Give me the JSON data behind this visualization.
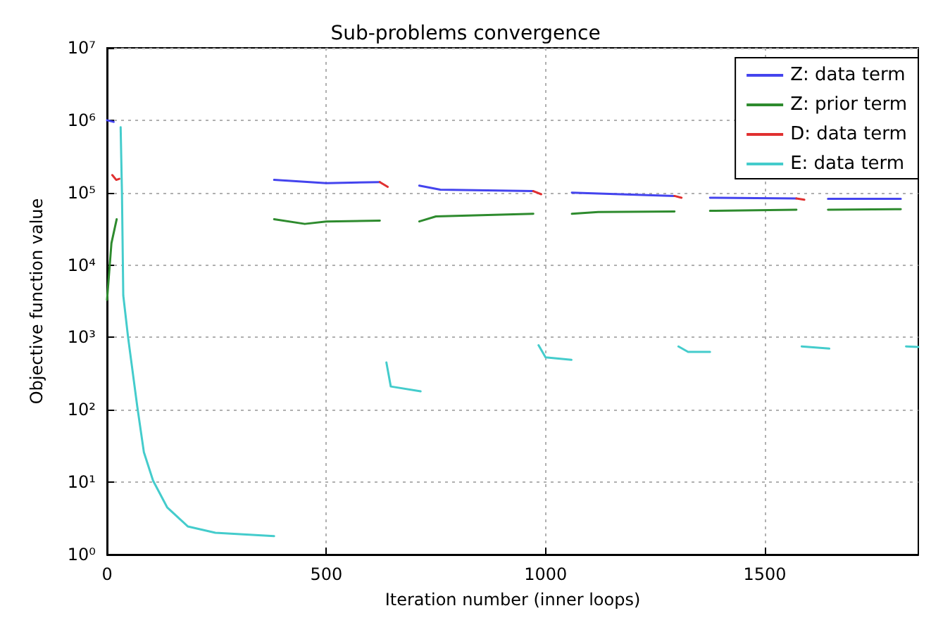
{
  "chart_data": {
    "type": "line",
    "title": "Sub-problems convergence",
    "xlabel": "Iteration number (inner loops)",
    "ylabel": "Objective function value",
    "log": "y",
    "grid": true,
    "legend": "top right",
    "xlim": [
      0,
      1850
    ],
    "xticks": [
      0,
      500,
      1000,
      1500
    ],
    "ylim": [
      1,
      10000000
    ],
    "yticks": [
      {
        "value": 1,
        "label": "10⁰"
      },
      {
        "value": 10,
        "label": "10¹"
      },
      {
        "value": 100,
        "label": "10²"
      },
      {
        "value": 1000,
        "label": "10³"
      },
      {
        "value": 10000,
        "label": "10⁴"
      },
      {
        "value": 100000,
        "label": "10⁵"
      },
      {
        "value": 1000000,
        "label": "10⁶"
      },
      {
        "value": 10000000,
        "label": "10⁷"
      }
    ],
    "series": [
      {
        "name": "Z: data term",
        "color": "#4444ee",
        "x": [
          0,
          15,
          200,
          381,
          500,
          622,
          660,
          712,
          760,
          972,
          1010,
          1060,
          1294,
          1330,
          1375,
          1572,
          1610,
          1644,
          1810
        ],
        "values": [
          1000000,
          950000,
          null,
          150000,
          135000,
          140000,
          null,
          125000,
          110000,
          105000,
          null,
          100000,
          90000,
          null,
          85000,
          83000,
          null,
          82000,
          82000
        ]
      },
      {
        "name": "Z: prior term",
        "color": "#2e8b2e",
        "x": [
          0,
          10,
          22,
          200,
          381,
          451,
          500,
          622,
          660,
          712,
          750,
          972,
          1010,
          1060,
          1120,
          1294,
          1330,
          1375,
          1572,
          1610,
          1644,
          1810
        ],
        "values": [
          3300,
          20000,
          43000,
          null,
          43000,
          37000,
          40000,
          41000,
          null,
          40000,
          47000,
          51000,
          null,
          51000,
          54000,
          55000,
          null,
          56000,
          58000,
          null,
          58000,
          59000
        ]
      },
      {
        "name": "D: data term",
        "color": "#e03030",
        "x": [
          12,
          21,
          28,
          300,
          622,
          640,
          700,
          972,
          990,
          1030,
          1294,
          1310,
          1350,
          1572,
          1590
        ],
        "values": [
          175000,
          150000,
          155000,
          null,
          140000,
          120000,
          null,
          105000,
          95000,
          null,
          90000,
          85000,
          null,
          83000,
          80000
        ]
      },
      {
        "name": "E: data term",
        "color": "#44cccc",
        "x": [
          31,
          34,
          37,
          48,
          69,
          84,
          105,
          137,
          184,
          247,
          381,
          500,
          637,
          647,
          715,
          850,
          984,
          1000,
          1059,
          1200,
          1303,
          1325,
          1375,
          1480,
          1584,
          1647,
          1720,
          1822,
          1850
        ],
        "values": [
          800000,
          100000,
          3800,
          1000,
          110,
          26,
          10.5,
          4.5,
          2.45,
          2.0,
          1.8,
          null,
          450,
          210,
          180,
          null,
          780,
          530,
          490,
          null,
          750,
          630,
          630,
          null,
          750,
          700,
          null,
          750,
          740
        ]
      }
    ]
  }
}
